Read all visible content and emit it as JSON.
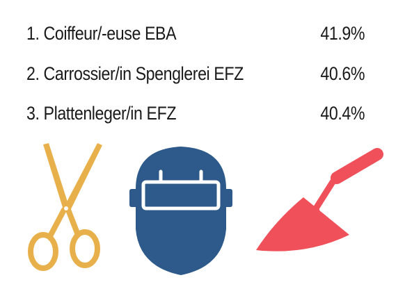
{
  "list": {
    "items": [
      {
        "label": "1. Coiffeur/-euse EBA",
        "value": "41.9%"
      },
      {
        "label": "2. Carrossier/in Spenglerei EFZ",
        "value": "40.6%"
      },
      {
        "label": "3. Plattenleger/in EFZ",
        "value": "40.4%"
      }
    ]
  }
}
